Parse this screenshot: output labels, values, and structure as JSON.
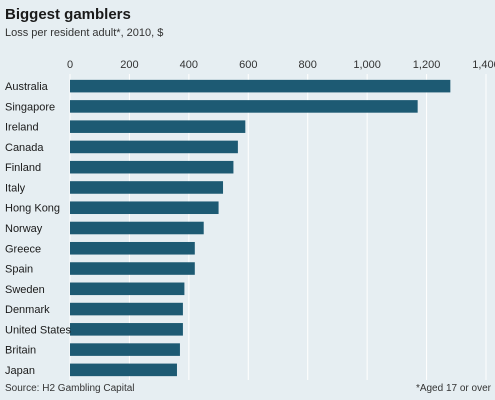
{
  "title": "Biggest gamblers",
  "subtitle": "Loss per resident adult*, 2010, $",
  "source": "Source: H2 Gambling Capital",
  "footnote": "*Aged 17 or over",
  "colors": {
    "background": "#e6eef2",
    "bar": "#1d5a73",
    "grid": "#ffffff"
  },
  "chart_data": {
    "type": "bar",
    "orientation": "horizontal",
    "title": "Biggest gamblers",
    "subtitle": "Loss per resident adult*, 2010, $",
    "xlim": [
      0,
      1400
    ],
    "ticks": [
      0,
      200,
      400,
      600,
      800,
      1000,
      1200,
      1400
    ],
    "tick_labels": [
      "0",
      "200",
      "400",
      "600",
      "800",
      "1,000",
      "1,200",
      "1,400"
    ],
    "categories": [
      "Australia",
      "Singapore",
      "Ireland",
      "Canada",
      "Finland",
      "Italy",
      "Hong Kong",
      "Norway",
      "Greece",
      "Spain",
      "Sweden",
      "Denmark",
      "United States",
      "Britain",
      "Japan"
    ],
    "values": [
      1280,
      1170,
      590,
      565,
      550,
      515,
      500,
      450,
      420,
      420,
      385,
      380,
      380,
      370,
      360
    ],
    "grid": true,
    "axis_position": "top"
  }
}
